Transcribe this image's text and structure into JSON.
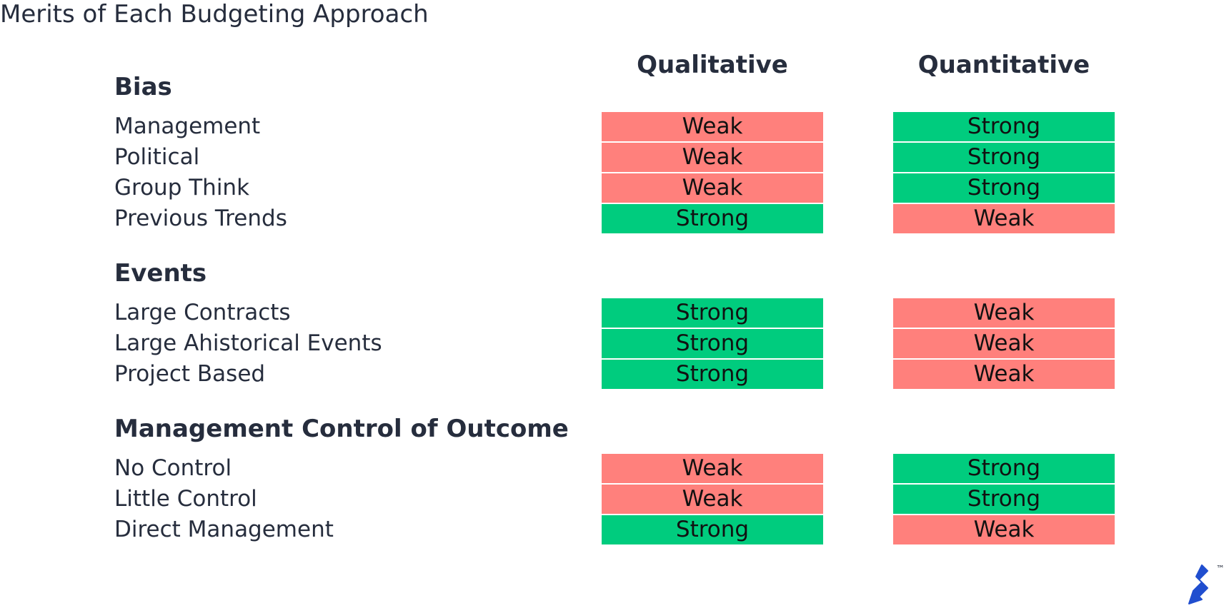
{
  "title": "Merits of Each Budgeting Approach",
  "columns": [
    "Qualitative",
    "Quantitative"
  ],
  "cell_colors": {
    "Weak": "#ff807c",
    "Strong": "#00cc7e"
  },
  "groups": [
    {
      "heading": "Bias",
      "rows": [
        {
          "label": "Management",
          "cells": [
            "Weak",
            "Strong"
          ]
        },
        {
          "label": "Political",
          "cells": [
            "Weak",
            "Strong"
          ]
        },
        {
          "label": "Group Think",
          "cells": [
            "Weak",
            "Strong"
          ]
        },
        {
          "label": "Previous Trends",
          "cells": [
            "Strong",
            "Weak"
          ]
        }
      ]
    },
    {
      "heading": "Events",
      "rows": [
        {
          "label": "Large Contracts",
          "cells": [
            "Strong",
            "Weak"
          ]
        },
        {
          "label": "Large Ahistorical Events",
          "cells": [
            "Strong",
            "Weak"
          ]
        },
        {
          "label": "Project Based",
          "cells": [
            "Strong",
            "Weak"
          ]
        }
      ]
    },
    {
      "heading": "Management Control of Outcome",
      "rows": [
        {
          "label": "No Control",
          "cells": [
            "Weak",
            "Strong"
          ]
        },
        {
          "label": "Little Control",
          "cells": [
            "Weak",
            "Strong"
          ]
        },
        {
          "label": "Direct Management",
          "cells": [
            "Strong",
            "Weak"
          ]
        }
      ]
    }
  ],
  "logo_mark": "™"
}
